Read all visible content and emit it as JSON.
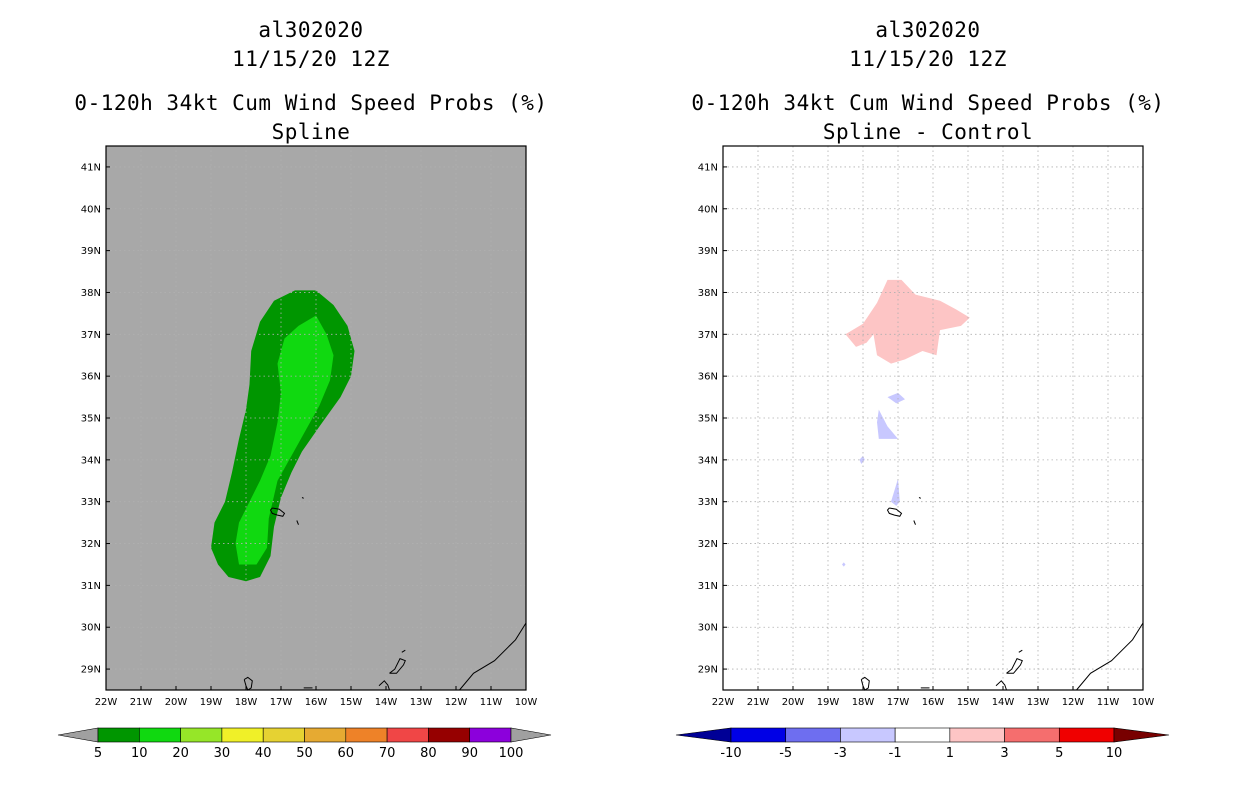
{
  "left_panel": {
    "storm_id": "al302020",
    "datetime": "11/15/20 12Z",
    "product": "0-120h 34kt Cum Wind Speed Probs (%)",
    "subtitle": "Spline"
  },
  "right_panel": {
    "storm_id": "al302020",
    "datetime": "11/15/20 12Z",
    "product": "0-120h 34kt Cum Wind Speed Probs (%)",
    "subtitle": "Spline - Control"
  },
  "colors": {
    "prob_background": "#a8a8a8",
    "prob_5_10": "#009600",
    "prob_10_20": "#10d910",
    "diff_positive_1_3": "#fdc5c5",
    "diff_negative_m3_m1": "#c8c8ff",
    "grid": "#b0b0b0",
    "coast": "#000000"
  },
  "chart_data": [
    {
      "type": "heatmap",
      "title": "0-120h 34kt Cum Wind Speed Probs (%)",
      "subtitle": "Spline",
      "xlabel": "",
      "ylabel": "",
      "xlim": [
        -22,
        -10
      ],
      "ylim": [
        28.5,
        41.5
      ],
      "x_ticks": [
        -22,
        -21,
        -20,
        -19,
        -18,
        -17,
        -16,
        -15,
        -14,
        -13,
        -12,
        -11,
        -10
      ],
      "x_tick_labels": [
        "22W",
        "21W",
        "20W",
        "19W",
        "18W",
        "17W",
        "16W",
        "15W",
        "14W",
        "13W",
        "12W",
        "11W",
        "10W"
      ],
      "y_ticks": [
        29,
        30,
        31,
        32,
        33,
        34,
        35,
        36,
        37,
        38,
        39,
        40,
        41
      ],
      "y_tick_labels": [
        "29N",
        "30N",
        "31N",
        "32N",
        "33N",
        "34N",
        "35N",
        "36N",
        "37N",
        "38N",
        "39N",
        "40N",
        "41N"
      ],
      "grid": true,
      "colorbar": {
        "levels": [
          5,
          10,
          20,
          30,
          40,
          50,
          60,
          70,
          80,
          90,
          100
        ],
        "labels": [
          "5",
          "10",
          "20",
          "30",
          "40",
          "50",
          "60",
          "70",
          "80",
          "90",
          "100"
        ],
        "colors": [
          "#009600",
          "#10d910",
          "#96e628",
          "#f0f028",
          "#e6d232",
          "#e6aa32",
          "#ee8228",
          "#f04646",
          "#960000",
          "#8c00dc"
        ],
        "end_colors": [
          "#a0a0a0",
          "#a0a0a0"
        ]
      },
      "regions": [
        {
          "range": "5-10",
          "color": "#009600",
          "outline": [
            [
              -18.8,
              31.5
            ],
            [
              -18.5,
              31.2
            ],
            [
              -18.0,
              31.1
            ],
            [
              -17.6,
              31.2
            ],
            [
              -17.3,
              31.7
            ],
            [
              -17.2,
              32.4
            ],
            [
              -17.0,
              33.1
            ],
            [
              -16.7,
              33.7
            ],
            [
              -16.4,
              34.2
            ],
            [
              -15.9,
              34.8
            ],
            [
              -15.3,
              35.5
            ],
            [
              -15.0,
              36.0
            ],
            [
              -14.9,
              36.6
            ],
            [
              -15.1,
              37.2
            ],
            [
              -15.5,
              37.7
            ],
            [
              -16.0,
              38.05
            ],
            [
              -16.6,
              38.05
            ],
            [
              -17.2,
              37.8
            ],
            [
              -17.6,
              37.3
            ],
            [
              -17.85,
              36.6
            ],
            [
              -17.9,
              35.8
            ],
            [
              -18.0,
              35.2
            ],
            [
              -18.2,
              34.5
            ],
            [
              -18.4,
              33.7
            ],
            [
              -18.6,
              33.0
            ],
            [
              -18.9,
              32.5
            ],
            [
              -19.0,
              31.9
            ]
          ]
        },
        {
          "range": "10-20",
          "color": "#10d910",
          "outline": [
            [
              -18.2,
              31.5
            ],
            [
              -17.7,
              31.5
            ],
            [
              -17.4,
              31.9
            ],
            [
              -17.35,
              32.6
            ],
            [
              -17.1,
              33.5
            ],
            [
              -16.7,
              34.1
            ],
            [
              -16.3,
              34.7
            ],
            [
              -15.9,
              35.3
            ],
            [
              -15.6,
              35.9
            ],
            [
              -15.5,
              36.5
            ],
            [
              -15.7,
              37.0
            ],
            [
              -16.0,
              37.45
            ],
            [
              -16.5,
              37.2
            ],
            [
              -16.9,
              36.9
            ],
            [
              -17.1,
              36.3
            ],
            [
              -17.0,
              35.6
            ],
            [
              -17.1,
              34.9
            ],
            [
              -17.3,
              34.1
            ],
            [
              -17.6,
              33.5
            ],
            [
              -17.9,
              33.0
            ],
            [
              -18.2,
              32.5
            ],
            [
              -18.3,
              32.0
            ]
          ]
        }
      ],
      "islands_labeled": []
    },
    {
      "type": "heatmap",
      "title": "0-120h 34kt Cum Wind Speed Probs (%)",
      "subtitle": "Spline - Control",
      "xlabel": "",
      "ylabel": "",
      "xlim": [
        -22,
        -10
      ],
      "ylim": [
        28.5,
        41.5
      ],
      "x_ticks": [
        -22,
        -21,
        -20,
        -19,
        -18,
        -17,
        -16,
        -15,
        -14,
        -13,
        -12,
        -11,
        -10
      ],
      "x_tick_labels": [
        "22W",
        "21W",
        "20W",
        "19W",
        "18W",
        "17W",
        "16W",
        "15W",
        "14W",
        "13W",
        "12W",
        "11W",
        "10W"
      ],
      "y_ticks": [
        29,
        30,
        31,
        32,
        33,
        34,
        35,
        36,
        37,
        38,
        39,
        40,
        41
      ],
      "y_tick_labels": [
        "29N",
        "30N",
        "31N",
        "32N",
        "33N",
        "34N",
        "35N",
        "36N",
        "37N",
        "38N",
        "39N",
        "40N",
        "41N"
      ],
      "grid": true,
      "colorbar": {
        "levels": [
          -10,
          -5,
          -3,
          -1,
          1,
          3,
          5,
          10
        ],
        "labels": [
          "-10",
          "-5",
          "-3",
          "-1",
          "1",
          "3",
          "5",
          "10"
        ],
        "colors": [
          "#0000e6",
          "#6e6ef0",
          "#c8c8ff",
          "#ffffff",
          "#fdc5c5",
          "#f56e6e",
          "#f00000"
        ],
        "end_colors": [
          "#000096",
          "#780000"
        ]
      },
      "regions": [
        {
          "range": "1-3",
          "color": "#fdc5c5",
          "outline": [
            [
              -18.5,
              37.0
            ],
            [
              -18.0,
              37.25
            ],
            [
              -17.6,
              37.75
            ],
            [
              -17.3,
              38.3
            ],
            [
              -16.9,
              38.3
            ],
            [
              -16.5,
              37.95
            ],
            [
              -15.8,
              37.8
            ],
            [
              -15.35,
              37.6
            ],
            [
              -14.95,
              37.4
            ],
            [
              -15.2,
              37.2
            ],
            [
              -15.8,
              37.1
            ],
            [
              -15.9,
              36.5
            ],
            [
              -16.3,
              36.6
            ],
            [
              -16.8,
              36.4
            ],
            [
              -17.2,
              36.3
            ],
            [
              -17.6,
              36.5
            ],
            [
              -17.7,
              37.0
            ],
            [
              -17.9,
              36.8
            ],
            [
              -18.2,
              36.7
            ]
          ]
        },
        {
          "range": "-3--1",
          "color": "#c8c8ff",
          "outline": [
            [
              -17.3,
              35.5
            ],
            [
              -17.0,
              35.6
            ],
            [
              -16.8,
              35.45
            ],
            [
              -17.05,
              35.35
            ]
          ]
        },
        {
          "range": "-3--1",
          "color": "#c8c8ff",
          "outline": [
            [
              -17.55,
              35.2
            ],
            [
              -17.3,
              34.8
            ],
            [
              -17.0,
              34.5
            ],
            [
              -17.55,
              34.5
            ],
            [
              -17.6,
              34.9
            ]
          ]
        },
        {
          "range": "-3--1",
          "color": "#c8c8ff",
          "outline": [
            [
              -17.0,
              33.55
            ],
            [
              -16.95,
              33.0
            ],
            [
              -17.05,
              32.9
            ],
            [
              -17.2,
              33.0
            ]
          ]
        },
        {
          "range": "-3--1",
          "color": "#c8c8ff",
          "outline": [
            [
              -18.1,
              34.0
            ],
            [
              -18.0,
              34.1
            ],
            [
              -17.95,
              34.0
            ],
            [
              -18.05,
              33.9
            ]
          ]
        },
        {
          "range": "-3--1",
          "color": "#c8c8ff",
          "outline": [
            [
              -18.6,
              31.5
            ],
            [
              -18.55,
              31.55
            ],
            [
              -18.5,
              31.5
            ],
            [
              -18.55,
              31.45
            ]
          ]
        }
      ]
    }
  ]
}
